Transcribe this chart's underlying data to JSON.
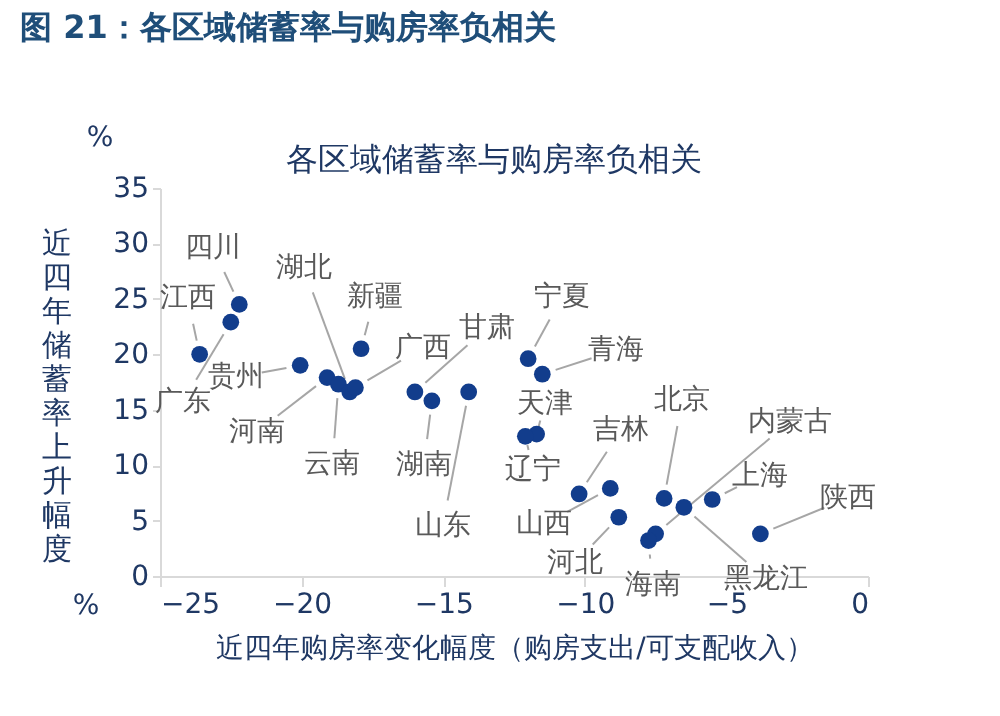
{
  "chart_data": {
    "type": "scatter",
    "title": "图 21：各区域储蓄率与购房率负相关",
    "subtitle": "各区域储蓄率与购房率负相关",
    "xlabel": "近四年购房率变化幅度（购房支出/可支配收入）",
    "ylabel": "近四年储蓄率上升幅度",
    "xlim": [
      -25,
      0
    ],
    "xticks": [
      -25,
      -20,
      -15,
      -10,
      -5,
      0
    ],
    "ylim": [
      0,
      35
    ],
    "yticks": [
      0,
      5,
      10,
      15,
      20,
      25,
      30,
      35
    ],
    "grid": false,
    "marker": "circle",
    "series": [
      {
        "color": "#123d8c",
        "x": [
          -23.6,
          -22.2,
          -22.5,
          -20.05,
          -19.1,
          -18.7,
          -18.3,
          -18.1,
          -17.9,
          -16.0,
          -15.4,
          -14.1,
          -12.0,
          -11.5,
          -11.7,
          -12.1,
          -10.2,
          -9.1,
          -8.8,
          -7.2,
          -7.5,
          -7.75,
          -6.5,
          -5.5,
          -3.8
        ],
        "values": [
          20.0,
          24.5,
          22.9,
          19.0,
          17.9,
          17.3,
          16.6,
          17.0,
          20.5,
          16.6,
          15.8,
          16.6,
          19.6,
          18.2,
          12.8,
          12.6,
          7.4,
          7.9,
          5.3,
          7.0,
          3.8,
          3.2,
          6.2,
          6.9,
          3.8
        ]
      }
    ],
    "annotations": [
      {
        "text": "江西",
        "x": -23.6,
        "y": 20.0
      },
      {
        "text": "四川",
        "x": -22.2,
        "y": 24.5
      },
      {
        "text": "广东",
        "x": -22.5,
        "y": 22.9
      },
      {
        "text": "贵州",
        "x": -20.05,
        "y": 19.0
      },
      {
        "text": "河南",
        "x": -19.1,
        "y": 17.9
      },
      {
        "text": "云南",
        "x": -18.7,
        "y": 17.3
      },
      {
        "text": "湖北",
        "x": -18.3,
        "y": 16.6
      },
      {
        "text": "广西",
        "x": -18.1,
        "y": 17.0
      },
      {
        "text": "新疆",
        "x": -17.9,
        "y": 20.5
      },
      {
        "text": "甘肃",
        "x": -16.0,
        "y": 16.6
      },
      {
        "text": "湖南",
        "x": -15.4,
        "y": 15.8
      },
      {
        "text": "山东",
        "x": -14.1,
        "y": 16.6
      },
      {
        "text": "宁夏",
        "x": -12.0,
        "y": 19.6
      },
      {
        "text": "青海",
        "x": -11.5,
        "y": 18.2
      },
      {
        "text": "天津",
        "x": -11.7,
        "y": 12.8
      },
      {
        "text": "辽宁",
        "x": -12.1,
        "y": 12.6
      },
      {
        "text": "吉林",
        "x": -10.2,
        "y": 7.4
      },
      {
        "text": "山西",
        "x": -9.1,
        "y": 7.9
      },
      {
        "text": "河北",
        "x": -8.8,
        "y": 5.3
      },
      {
        "text": "北京",
        "x": -7.2,
        "y": 7.0
      },
      {
        "text": "内蒙古",
        "x": -7.5,
        "y": 3.8
      },
      {
        "text": "海南",
        "x": -7.75,
        "y": 3.2
      },
      {
        "text": "黑龙江",
        "x": -6.5,
        "y": 6.2
      },
      {
        "text": "上海",
        "x": -5.5,
        "y": 6.9
      },
      {
        "text": "陕西",
        "x": -3.8,
        "y": 3.8
      },
      "%",
      "%"
    ]
  }
}
